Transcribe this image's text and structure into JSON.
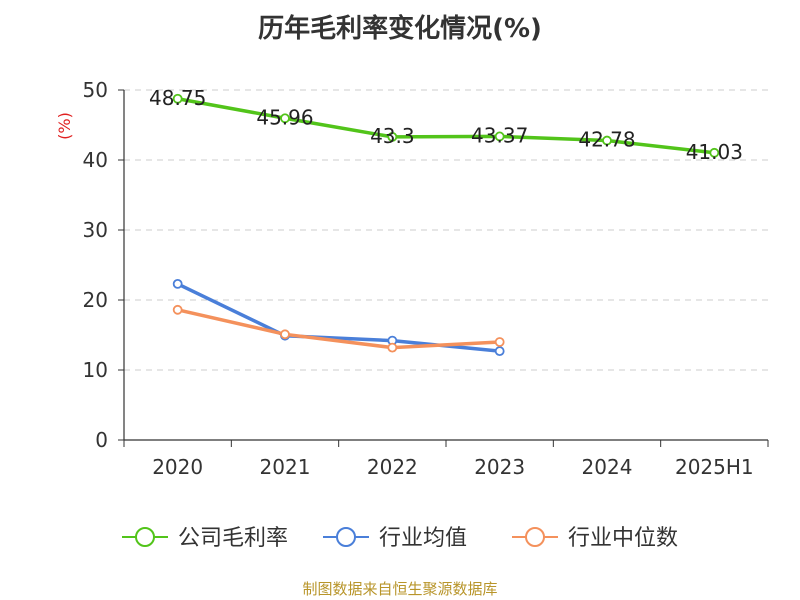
{
  "chart_data": {
    "type": "line",
    "title": "历年毛利率变化情况(%)",
    "ylabel": "(%)",
    "xlabel": "",
    "categories": [
      "2020",
      "2021",
      "2022",
      "2023",
      "2024",
      "2025H1"
    ],
    "ylim": [
      0,
      50
    ],
    "yticks": [
      0,
      10,
      20,
      30,
      40,
      50
    ],
    "grid": true,
    "legend_position": "bottom",
    "series": [
      {
        "name": "公司毛利率",
        "color": "#52c41a",
        "values": [
          48.75,
          45.96,
          43.3,
          43.37,
          42.78,
          41.03
        ],
        "show_labels": true
      },
      {
        "name": "行业均值",
        "color": "#4a7fd9",
        "values": [
          22.3,
          14.9,
          14.2,
          12.7,
          null,
          null
        ],
        "show_labels": false
      },
      {
        "name": "行业中位数",
        "color": "#f4915c",
        "values": [
          18.6,
          15.1,
          13.2,
          14.0,
          null,
          null
        ],
        "show_labels": false
      }
    ]
  },
  "footer": {
    "source": "制图数据来自恒生聚源数据库"
  }
}
